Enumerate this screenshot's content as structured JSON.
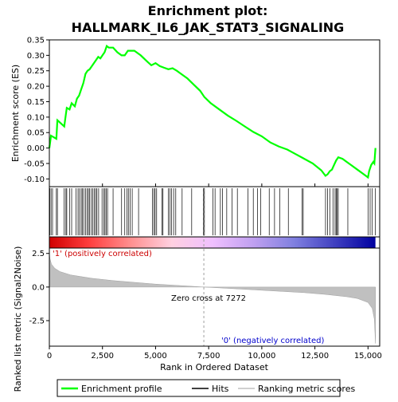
{
  "chart_data": {
    "type": "line",
    "title": "Enrichment plot:\nHALLMARK_IL6_JAK_STAT3_SIGNALING",
    "title_lines": [
      "Enrichment plot:",
      "HALLMARK_IL6_JAK_STAT3_SIGNALING"
    ],
    "xlabel": "Rank in Ordered Dataset",
    "top_panel": {
      "ylabel": "Enrichment score (ES)",
      "ylim": [
        -0.125,
        0.35
      ],
      "yticks": [
        -0.1,
        -0.05,
        0.0,
        0.05,
        0.1,
        0.15,
        0.2,
        0.25,
        0.3,
        0.35
      ],
      "ytick_labels": [
        "-0.10",
        "-0.05",
        "0.00",
        "0.05",
        "0.10",
        "0.15",
        "0.20",
        "0.25",
        "0.30",
        "0.35"
      ],
      "series": [
        {
          "name": "Enrichment profile",
          "color": "#00ff00",
          "points": [
            [
              0,
              0.0
            ],
            [
              80,
              0.04
            ],
            [
              330,
              0.03
            ],
            [
              380,
              0.09
            ],
            [
              700,
              0.07
            ],
            [
              780,
              0.11
            ],
            [
              820,
              0.13
            ],
            [
              950,
              0.125
            ],
            [
              1050,
              0.145
            ],
            [
              1200,
              0.135
            ],
            [
              1300,
              0.16
            ],
            [
              1400,
              0.17
            ],
            [
              1500,
              0.19
            ],
            [
              1600,
              0.21
            ],
            [
              1700,
              0.24
            ],
            [
              1800,
              0.25
            ],
            [
              1900,
              0.255
            ],
            [
              2000,
              0.265
            ],
            [
              2100,
              0.275
            ],
            [
              2200,
              0.285
            ],
            [
              2300,
              0.295
            ],
            [
              2400,
              0.29
            ],
            [
              2500,
              0.3
            ],
            [
              2600,
              0.31
            ],
            [
              2700,
              0.33
            ],
            [
              2800,
              0.325
            ],
            [
              3000,
              0.325
            ],
            [
              3200,
              0.31
            ],
            [
              3400,
              0.3
            ],
            [
              3550,
              0.3
            ],
            [
              3700,
              0.315
            ],
            [
              3850,
              0.315
            ],
            [
              4000,
              0.315
            ],
            [
              4300,
              0.3
            ],
            [
              4600,
              0.28
            ],
            [
              4800,
              0.268
            ],
            [
              5000,
              0.275
            ],
            [
              5200,
              0.265
            ],
            [
              5400,
              0.26
            ],
            [
              5600,
              0.255
            ],
            [
              5800,
              0.258
            ],
            [
              6000,
              0.25
            ],
            [
              6200,
              0.24
            ],
            [
              6500,
              0.225
            ],
            [
              6800,
              0.205
            ],
            [
              7100,
              0.185
            ],
            [
              7300,
              0.165
            ],
            [
              7600,
              0.145
            ],
            [
              8000,
              0.125
            ],
            [
              8400,
              0.105
            ],
            [
              8800,
              0.088
            ],
            [
              9200,
              0.07
            ],
            [
              9600,
              0.052
            ],
            [
              10000,
              0.038
            ],
            [
              10400,
              0.018
            ],
            [
              10800,
              0.005
            ],
            [
              11200,
              -0.005
            ],
            [
              11600,
              -0.02
            ],
            [
              12000,
              -0.035
            ],
            [
              12400,
              -0.05
            ],
            [
              12800,
              -0.072
            ],
            [
              13000,
              -0.09
            ],
            [
              13100,
              -0.085
            ],
            [
              13200,
              -0.075
            ],
            [
              13300,
              -0.07
            ],
            [
              13400,
              -0.055
            ],
            [
              13500,
              -0.04
            ],
            [
              13600,
              -0.03
            ],
            [
              13800,
              -0.035
            ],
            [
              14000,
              -0.045
            ],
            [
              14200,
              -0.055
            ],
            [
              14500,
              -0.07
            ],
            [
              14800,
              -0.085
            ],
            [
              15000,
              -0.095
            ],
            [
              15050,
              -0.075
            ],
            [
              15150,
              -0.055
            ],
            [
              15250,
              -0.045
            ],
            [
              15300,
              -0.05
            ],
            [
              15350,
              0.0
            ]
          ]
        }
      ]
    },
    "hits_panel": {
      "name": "Hits",
      "hit_ranks": [
        20,
        80,
        150,
        330,
        380,
        700,
        780,
        820,
        950,
        1050,
        1250,
        1350,
        1420,
        1500,
        1560,
        1620,
        1700,
        1780,
        1840,
        1900,
        1980,
        2050,
        2120,
        2180,
        2240,
        2320,
        2480,
        2560,
        2620,
        2680,
        2740,
        3000,
        3400,
        3550,
        3650,
        3720,
        3800,
        3900,
        4200,
        4850,
        4920,
        4980,
        5050,
        5300,
        5350,
        5600,
        5680,
        5750,
        5850,
        5950,
        6250,
        6700,
        7250,
        7300,
        7700,
        7800,
        8050,
        8150,
        8350,
        8600,
        8850,
        9350,
        9600,
        9800,
        9950,
        10350,
        10600,
        10850,
        11250,
        11900,
        11950,
        13000,
        13100,
        13200,
        13350,
        13450,
        13500,
        13550,
        13600,
        14050,
        15000,
        15100,
        15200,
        15350
      ]
    },
    "heatmap": {
      "name": "Ranking metric scores",
      "gradient_colors": [
        "#d00000",
        "#ff4040",
        "#ff9090",
        "#ffd0e0",
        "#f0c0ff",
        "#c0a0f0",
        "#8080e0",
        "#4040c0",
        "#0000a0"
      ]
    },
    "bottom_panel": {
      "ylabel": "Ranked list metric (Signal2Noise)",
      "ylim": [
        -4.4,
        2.9
      ],
      "yticks": [
        -2.5,
        0.0,
        2.5
      ],
      "ytick_labels": [
        "-2.5",
        "0.0",
        "2.5"
      ],
      "series": [
        {
          "name": "Ranking metric scores",
          "color": "#c0c0c0",
          "points": [
            [
              0,
              2.6
            ],
            [
              30,
              2.1
            ],
            [
              100,
              1.7
            ],
            [
              250,
              1.4
            ],
            [
              500,
              1.15
            ],
            [
              1000,
              0.9
            ],
            [
              2000,
              0.65
            ],
            [
              3000,
              0.48
            ],
            [
              4000,
              0.35
            ],
            [
              5000,
              0.22
            ],
            [
              6000,
              0.12
            ],
            [
              7000,
              0.03
            ],
            [
              7272,
              0.0
            ],
            [
              8000,
              -0.06
            ],
            [
              9000,
              -0.15
            ],
            [
              10000,
              -0.24
            ],
            [
              11000,
              -0.33
            ],
            [
              12000,
              -0.42
            ],
            [
              13000,
              -0.55
            ],
            [
              14000,
              -0.72
            ],
            [
              14500,
              -0.85
            ],
            [
              15000,
              -1.15
            ],
            [
              15200,
              -1.6
            ],
            [
              15300,
              -2.4
            ],
            [
              15350,
              -4.2
            ]
          ]
        }
      ],
      "annotations": {
        "positive": "'1' (positively correlated)",
        "zero_cross": "Zero cross at 7272",
        "negative": "'0' (negatively correlated)"
      },
      "zero_cross_rank": 7272
    },
    "xlim": [
      0,
      15550
    ],
    "xticks": [
      0,
      2500,
      5000,
      7500,
      10000,
      12500,
      15000
    ],
    "xtick_labels": [
      "0",
      "2,500",
      "5,000",
      "7,500",
      "10,000",
      "12,500",
      "15,000"
    ],
    "n_genes": 15350,
    "legend": {
      "placement": "bottom",
      "entries": [
        {
          "label": "Enrichment profile",
          "color": "#00ff00"
        },
        {
          "label": "Hits",
          "color": "#000000"
        },
        {
          "label": "Ranking metric scores",
          "color": "#c0c0c0"
        }
      ]
    }
  }
}
